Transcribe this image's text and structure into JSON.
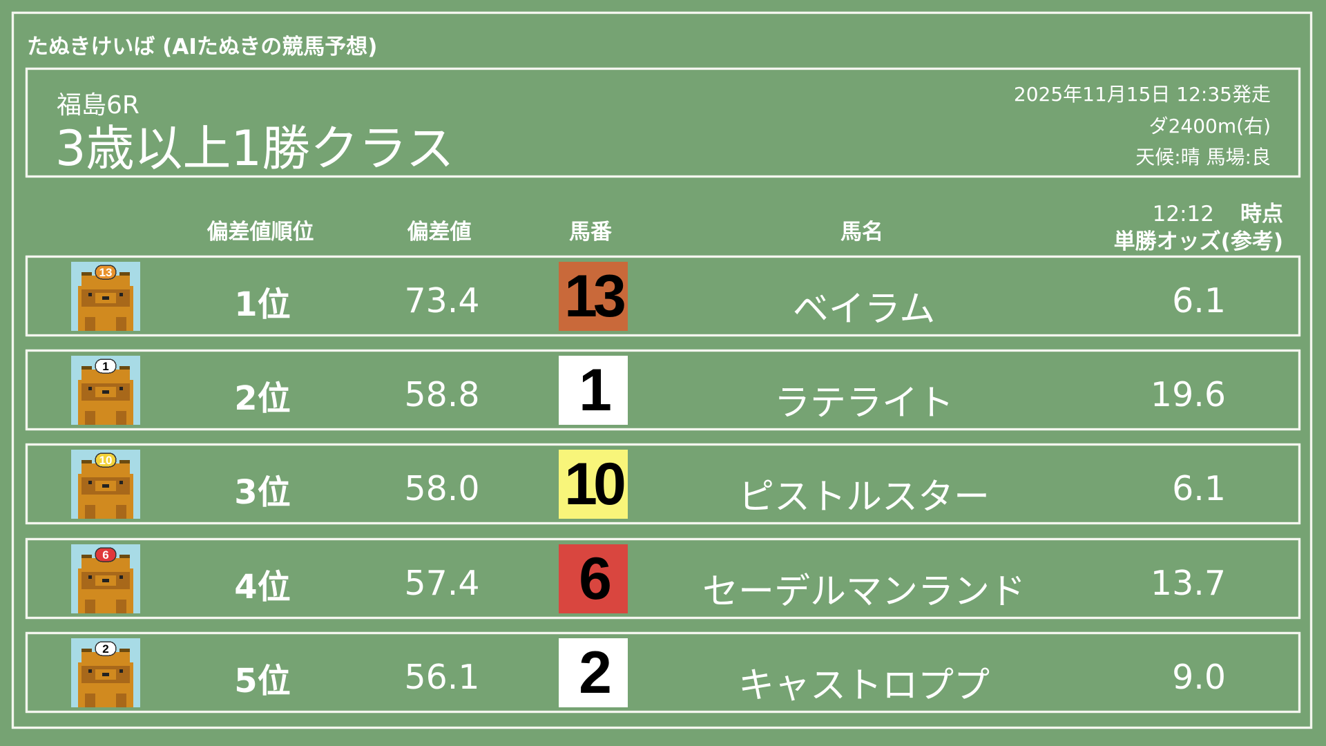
{
  "site_title": "たぬきけいば (AIたぬきの競馬予想)",
  "race": {
    "venue": "福島6R",
    "name": "3歳以上1勝クラス",
    "datetime": "2025年11月15日 12:35発走",
    "course": "ダ2400m(右)",
    "conditions": "天候:晴 馬場:良"
  },
  "columns": {
    "rank": "偏差値順位",
    "deviation": "偏差値",
    "number": "馬番",
    "name": "馬名",
    "odds_time": "12:12",
    "odds_time_suffix": "時点",
    "odds": "単勝オッズ(参考)"
  },
  "rows": [
    {
      "rank": "1位",
      "deviation": "73.4",
      "number": "13",
      "name": "ベイラム",
      "odds": "6.1",
      "badge_color": "#c9693a",
      "cap_color": "#e8922c",
      "cap_text_color": "#ffffff"
    },
    {
      "rank": "2位",
      "deviation": "58.8",
      "number": "1",
      "name": "ラテライト",
      "odds": "19.6",
      "badge_color": "#ffffff",
      "cap_color": "#ffffff",
      "cap_text_color": "#000000"
    },
    {
      "rank": "3位",
      "deviation": "58.0",
      "number": "10",
      "name": "ピストルスター",
      "odds": "6.1",
      "badge_color": "#f8f57a",
      "cap_color": "#f2d23a",
      "cap_text_color": "#ffffff"
    },
    {
      "rank": "4位",
      "deviation": "57.4",
      "number": "6",
      "name": "セーデルマンランド",
      "odds": "13.7",
      "badge_color": "#d9463f",
      "cap_color": "#e0383a",
      "cap_text_color": "#ffffff"
    },
    {
      "rank": "5位",
      "deviation": "56.1",
      "number": "2",
      "name": "キャストロププ",
      "odds": "9.0",
      "badge_color": "#ffffff",
      "cap_color": "#ffffff",
      "cap_text_color": "#000000"
    }
  ]
}
